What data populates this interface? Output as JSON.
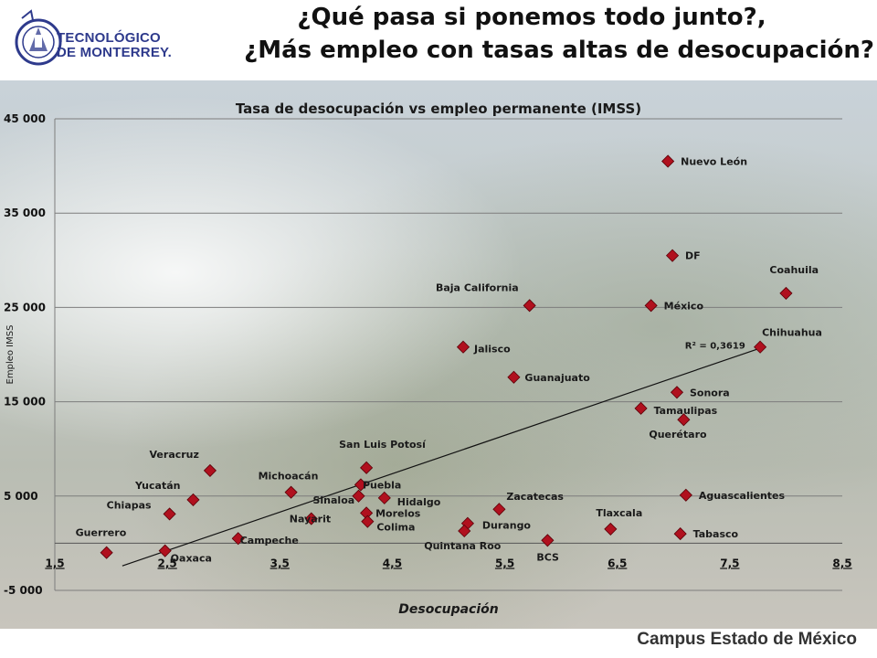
{
  "header": {
    "logo_text_line1": "TECNOLÓGICO",
    "logo_text_line2": "DE MONTERREY.",
    "title_line1": "¿Qué pasa si ponemos todo junto?,",
    "title_line2": "¿Más empleo con tasas altas de desocupación?"
  },
  "footer": {
    "campus": "Campus Estado de México"
  },
  "colors": {
    "marker": "#b0101e",
    "gridline": "#8a8a8a",
    "trendline": "#111111",
    "title_text": "#111111",
    "footer_text": "#333333"
  },
  "chart_data": {
    "type": "scatter",
    "title": "Tasa de desocupación vs empleo permanente (IMSS)",
    "xlabel": "Desocupación",
    "ylabel": "Empleo IMSS",
    "xlim": [
      1.5,
      8.5
    ],
    "ylim": [
      -5000,
      45000
    ],
    "xticks": [
      "1,5",
      "2,5",
      "3,5",
      "4,5",
      "5,5",
      "6,5",
      "7,5",
      "8,5"
    ],
    "xtick_values": [
      1.5,
      2.5,
      3.5,
      4.5,
      5.5,
      6.5,
      7.5,
      8.5
    ],
    "yticks": [
      "45 000",
      "35 000",
      "25 000",
      "15 000",
      "5 000",
      "-5 000"
    ],
    "ytick_values": [
      45000,
      35000,
      25000,
      15000,
      5000,
      -5000
    ],
    "grid": true,
    "trendline": {
      "x": [
        2.1,
        7.8
      ],
      "y": [
        -2400,
        20800
      ],
      "r2_label": "R² = 0,3619"
    },
    "points": [
      {
        "label": "Nuevo León",
        "x": 6.95,
        "y": 40500
      },
      {
        "label": "DF",
        "x": 6.99,
        "y": 30500
      },
      {
        "label": "Coahuila",
        "x": 8.0,
        "y": 26500
      },
      {
        "label": "Baja California",
        "x": 5.72,
        "y": 25200
      },
      {
        "label": "México",
        "x": 6.8,
        "y": 25200
      },
      {
        "label": "Chihuahua",
        "x": 7.77,
        "y": 20800
      },
      {
        "label": "Jalisco",
        "x": 5.13,
        "y": 20800
      },
      {
        "label": "Guanajuato",
        "x": 5.58,
        "y": 17600
      },
      {
        "label": "Sonora",
        "x": 7.03,
        "y": 16000
      },
      {
        "label": "Tamaulipas",
        "x": 6.71,
        "y": 14300
      },
      {
        "label": "Querétaro",
        "x": 7.09,
        "y": 13100
      },
      {
        "label": "San Luis Potosí",
        "x": 4.27,
        "y": 8000
      },
      {
        "label": "Veracruz",
        "x": 2.88,
        "y": 7700
      },
      {
        "label": "Puebla",
        "x": 4.22,
        "y": 6200
      },
      {
        "label": "Michoacán",
        "x": 3.6,
        "y": 5400
      },
      {
        "label": "Sinaloa",
        "x": 4.2,
        "y": 5000
      },
      {
        "label": "Hidalgo",
        "x": 4.43,
        "y": 4800
      },
      {
        "label": "Aguascalientes",
        "x": 7.11,
        "y": 5100
      },
      {
        "label": "Yucatán",
        "x": 2.73,
        "y": 4600
      },
      {
        "label": "Zacatecas",
        "x": 5.45,
        "y": 3600
      },
      {
        "label": "Chiapas",
        "x": 2.52,
        "y": 3100
      },
      {
        "label": "Morelos",
        "x": 4.27,
        "y": 3200
      },
      {
        "label": "Nayarit",
        "x": 3.78,
        "y": 2600
      },
      {
        "label": "Colima",
        "x": 4.28,
        "y": 2300
      },
      {
        "label": "Durango",
        "x": 5.17,
        "y": 2100
      },
      {
        "label": "Quintana Roo",
        "x": 5.14,
        "y": 1300
      },
      {
        "label": "Tlaxcala",
        "x": 6.44,
        "y": 1500
      },
      {
        "label": "Tabasco",
        "x": 7.06,
        "y": 1000
      },
      {
        "label": "Campeche",
        "x": 3.13,
        "y": 500
      },
      {
        "label": "BCS",
        "x": 5.88,
        "y": 300
      },
      {
        "label": "Guerrero",
        "x": 1.96,
        "y": -1000
      },
      {
        "label": "Oaxaca",
        "x": 2.48,
        "y": -800
      }
    ]
  }
}
